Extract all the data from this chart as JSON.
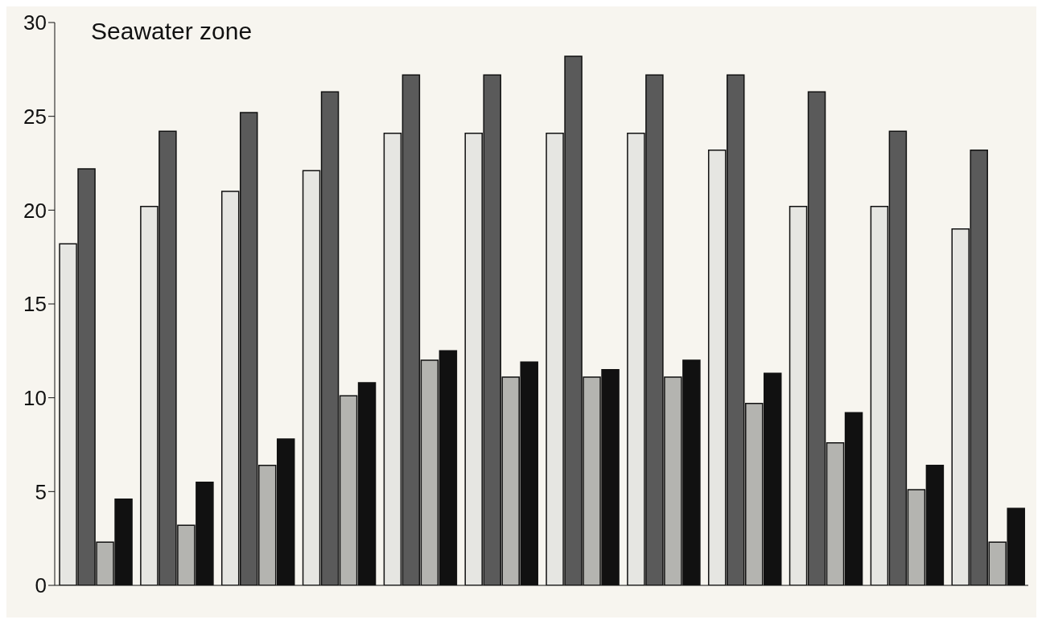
{
  "chart_data": {
    "type": "bar",
    "title": "Seawater zone",
    "categories": [
      null,
      null,
      null,
      null,
      null,
      null,
      null,
      null,
      null,
      null,
      null,
      null
    ],
    "series": [
      {
        "color": "#e6e6e2",
        "values": [
          18.2,
          20.2,
          21.0,
          22.1,
          24.1,
          24.1,
          24.1,
          24.1,
          23.2,
          20.2,
          20.2,
          19.0
        ]
      },
      {
        "color": "#5a5a5a",
        "values": [
          22.2,
          24.2,
          25.2,
          26.3,
          27.2,
          27.2,
          28.2,
          27.2,
          27.2,
          26.3,
          24.2,
          23.2
        ]
      },
      {
        "color": "#b4b4b0",
        "values": [
          2.3,
          3.2,
          6.4,
          10.1,
          12.0,
          11.1,
          11.1,
          11.1,
          9.7,
          7.6,
          5.1,
          2.3
        ]
      },
      {
        "color": "#111111",
        "values": [
          4.6,
          5.5,
          7.8,
          10.8,
          12.5,
          11.9,
          11.5,
          12.0,
          11.3,
          9.2,
          6.4,
          4.1
        ]
      }
    ],
    "ylim": [
      0,
      30
    ],
    "yticks": [
      0,
      5,
      10,
      15,
      20,
      25,
      30
    ],
    "grid": false,
    "tick_labels": "y"
  }
}
